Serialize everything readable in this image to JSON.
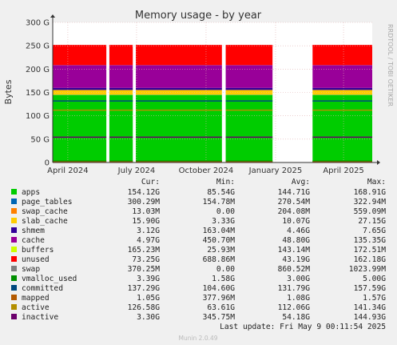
{
  "chart_data": {
    "type": "area",
    "title": "Memory usage - by year",
    "ylabel": "Bytes",
    "side_label": "RRDTOOL / TOBI OETIKER",
    "ylim": [
      0,
      300
    ],
    "y_ticks": [
      "0",
      "50 G",
      "100 G",
      "150 G",
      "200 G",
      "250 G",
      "300 G"
    ],
    "y_tick_values": [
      0,
      50,
      100,
      150,
      200,
      250,
      300
    ],
    "x_ticks": [
      {
        "label": "April 2024",
        "date": "2024-04-01"
      },
      {
        "label": "July 2024",
        "date": "2024-07-01"
      },
      {
        "label": "October 2024",
        "date": "2024-10-01"
      },
      {
        "label": "January 2025",
        "date": "2025-01-01"
      },
      {
        "label": "April 2025",
        "date": "2025-04-01"
      }
    ],
    "x_range": [
      "2024-03-12",
      "2025-05-09"
    ],
    "gaps": [
      [
        "2024-05-22",
        "2024-05-26"
      ],
      [
        "2024-06-26",
        "2024-06-30"
      ],
      [
        "2024-10-22",
        "2024-10-27"
      ],
      [
        "2024-12-28",
        "2025-01-01"
      ],
      [
        "2025-01-01",
        "2025-02-19"
      ]
    ],
    "columns": [
      "Cur:",
      "Min:",
      "Avg:",
      "Max:"
    ],
    "series": [
      {
        "name": "apps",
        "color": "#00cc00",
        "cur": "154.12G",
        "min": "85.54G",
        "avg": "144.71G",
        "max": "168.91G"
      },
      {
        "name": "page_tables",
        "color": "#0066b3",
        "cur": "300.29M",
        "min": "154.78M",
        "avg": "270.54M",
        "max": "322.94M"
      },
      {
        "name": "swap_cache",
        "color": "#ff8000",
        "cur": "13.03M",
        "min": "0.00",
        "avg": "204.08M",
        "max": "559.09M"
      },
      {
        "name": "slab_cache",
        "color": "#ffcc00",
        "cur": "15.90G",
        "min": "3.33G",
        "avg": "10.07G",
        "max": "27.15G"
      },
      {
        "name": "shmem",
        "color": "#330099",
        "cur": "3.12G",
        "min": "163.04M",
        "avg": "4.46G",
        "max": "7.65G"
      },
      {
        "name": "cache",
        "color": "#990099",
        "cur": "4.97G",
        "min": "450.70M",
        "avg": "48.80G",
        "max": "135.35G"
      },
      {
        "name": "buffers",
        "color": "#ccff00",
        "cur": "165.23M",
        "min": "25.93M",
        "avg": "143.14M",
        "max": "172.51M"
      },
      {
        "name": "unused",
        "color": "#ff0000",
        "cur": "73.25G",
        "min": "688.86M",
        "avg": "43.19G",
        "max": "162.18G"
      },
      {
        "name": "swap",
        "color": "#808080",
        "cur": "370.25M",
        "min": "0.00",
        "avg": "860.52M",
        "max": "1023.99M"
      },
      {
        "name": "vmalloc_used",
        "color": "#008f00",
        "cur": "3.39G",
        "min": "1.58G",
        "avg": "3.00G",
        "max": "5.00G"
      },
      {
        "name": "committed",
        "color": "#00487d",
        "cur": "137.29G",
        "min": "104.60G",
        "avg": "131.79G",
        "max": "157.59G"
      },
      {
        "name": "mapped",
        "color": "#b35a00",
        "cur": "1.05G",
        "min": "377.96M",
        "avg": "1.08G",
        "max": "1.57G"
      },
      {
        "name": "active",
        "color": "#b38f00",
        "cur": "126.58G",
        "min": "63.61G",
        "avg": "112.06G",
        "max": "141.34G"
      },
      {
        "name": "inactive",
        "color": "#6b006b",
        "cur": "3.30G",
        "min": "345.75M",
        "avg": "54.18G",
        "max": "144.93G"
      }
    ],
    "last_update": "Last update: Fri May  9 00:11:54 2025",
    "footer": "Munin 2.0.49"
  },
  "colors": {
    "background": "#f0f0f0",
    "plot_bg": "#ffffff",
    "grid": "#e0b0b0"
  }
}
